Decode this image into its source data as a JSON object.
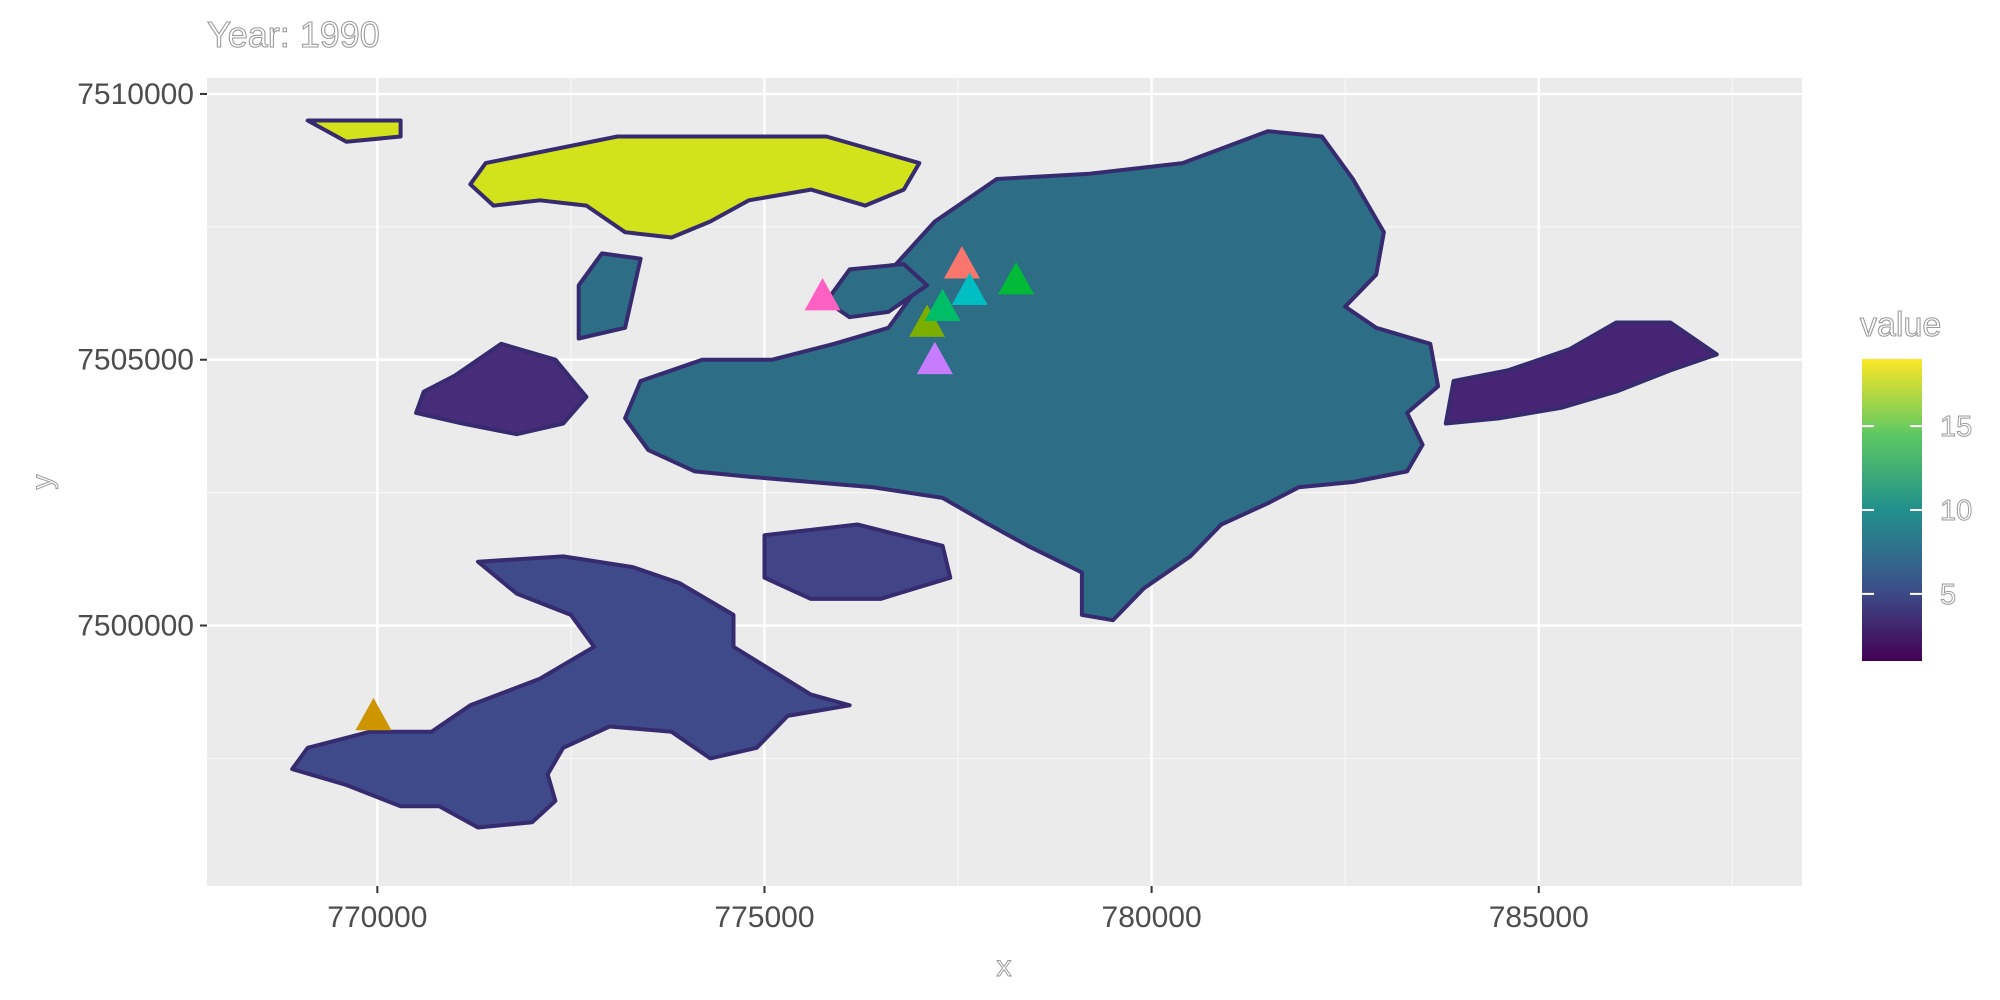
{
  "title": "Year: 1990",
  "chart_data": {
    "type": "map",
    "title": "Year: 1990",
    "xlabel": "x",
    "ylabel": "y",
    "xlim": [
      767800,
      788400
    ],
    "ylim": [
      7495100,
      7510300
    ],
    "x_ticks": [
      770000,
      775000,
      780000,
      785000
    ],
    "x_tick_labels": [
      "770000",
      "775000",
      "780000",
      "785000"
    ],
    "y_ticks": [
      7500000,
      7505000,
      7510000
    ],
    "y_tick_labels": [
      "7500000",
      "7505000",
      "7510000"
    ],
    "grid": true,
    "legend": {
      "title": "value",
      "position": "right",
      "range": [
        1,
        19
      ],
      "breaks": [
        5,
        10,
        15
      ],
      "break_labels": [
        "5",
        "10",
        "15"
      ],
      "palette": [
        "#440154",
        "#3b528b",
        "#21908c",
        "#5dc863",
        "#fde725"
      ]
    },
    "points": [
      {
        "x": 769950,
        "y": 7498300,
        "color": "#CD9600"
      },
      {
        "x": 775750,
        "y": 7506200,
        "color": "#FF61C3"
      },
      {
        "x": 777100,
        "y": 7505700,
        "color": "#7CAE00"
      },
      {
        "x": 777300,
        "y": 7506000,
        "color": "#00BE67"
      },
      {
        "x": 777200,
        "y": 7505000,
        "color": "#C77CFF"
      },
      {
        "x": 777550,
        "y": 7506800,
        "color": "#F8766D"
      },
      {
        "x": 777650,
        "y": 7506300,
        "color": "#00BFC4"
      },
      {
        "x": 778250,
        "y": 7506500,
        "color": "#00BA38"
      }
    ],
    "regions": [
      {
        "value": 8.5,
        "color": "#2d6d86",
        "points": [
          [
            776700,
            7506800
          ],
          [
            777200,
            7507600
          ],
          [
            778000,
            7508400
          ],
          [
            779200,
            7508500
          ],
          [
            780400,
            7508700
          ],
          [
            781500,
            7509300
          ],
          [
            782200,
            7509200
          ],
          [
            782600,
            7508400
          ],
          [
            783000,
            7507400
          ],
          [
            782900,
            7506600
          ],
          [
            782500,
            7506000
          ],
          [
            782900,
            7505600
          ],
          [
            783600,
            7505300
          ],
          [
            783700,
            7504500
          ],
          [
            783300,
            7504000
          ],
          [
            783500,
            7503400
          ],
          [
            783300,
            7502900
          ],
          [
            782600,
            7502700
          ],
          [
            781900,
            7502600
          ],
          [
            781500,
            7502300
          ],
          [
            780900,
            7501900
          ],
          [
            780500,
            7501300
          ],
          [
            779900,
            7500700
          ],
          [
            779500,
            7500100
          ],
          [
            779100,
            7500200
          ],
          [
            779100,
            7501000
          ],
          [
            778400,
            7501500
          ],
          [
            777900,
            7501900
          ],
          [
            777300,
            7502400
          ],
          [
            776400,
            7502600
          ],
          [
            775600,
            7502700
          ],
          [
            774800,
            7502800
          ],
          [
            774100,
            7502900
          ],
          [
            773500,
            7503300
          ],
          [
            773200,
            7503900
          ],
          [
            773400,
            7504600
          ],
          [
            774200,
            7505000
          ],
          [
            775100,
            7505000
          ],
          [
            775900,
            7505300
          ],
          [
            776600,
            7505600
          ],
          [
            776900,
            7506200
          ]
        ]
      },
      {
        "value": 8.5,
        "color": "#2d6d86",
        "points": [
          [
            775800,
            7506100
          ],
          [
            776100,
            7506700
          ],
          [
            776800,
            7506800
          ],
          [
            777100,
            7506400
          ],
          [
            776600,
            7505900
          ],
          [
            776100,
            7505800
          ]
        ]
      },
      {
        "value": 2.5,
        "color": "#482475",
        "points": [
          [
            783800,
            7503800
          ],
          [
            783900,
            7504600
          ],
          [
            784600,
            7504800
          ],
          [
            785400,
            7505200
          ],
          [
            786000,
            7505700
          ],
          [
            786700,
            7505700
          ],
          [
            787300,
            7505100
          ],
          [
            786700,
            7504800
          ],
          [
            786000,
            7504400
          ],
          [
            785300,
            7504100
          ],
          [
            784500,
            7503900
          ]
        ]
      },
      {
        "value": 5,
        "color": "#3e4a89",
        "points": [
          [
            771300,
            7501200
          ],
          [
            772400,
            7501300
          ],
          [
            773300,
            7501100
          ],
          [
            773900,
            7500800
          ],
          [
            774600,
            7500200
          ],
          [
            774600,
            7499600
          ],
          [
            775600,
            7498700
          ],
          [
            776100,
            7498500
          ],
          [
            775300,
            7498300
          ],
          [
            774900,
            7497700
          ],
          [
            774300,
            7497500
          ],
          [
            773800,
            7498000
          ],
          [
            773000,
            7498100
          ],
          [
            772400,
            7497700
          ],
          [
            772200,
            7497200
          ],
          [
            772300,
            7496700
          ],
          [
            772000,
            7496300
          ],
          [
            771300,
            7496200
          ],
          [
            770800,
            7496600
          ],
          [
            770300,
            7496600
          ],
          [
            769600,
            7497000
          ],
          [
            768900,
            7497300
          ],
          [
            769100,
            7497700
          ],
          [
            769900,
            7498000
          ],
          [
            770700,
            7498000
          ],
          [
            771200,
            7498500
          ],
          [
            772100,
            7499000
          ],
          [
            772800,
            7499600
          ],
          [
            772500,
            7500200
          ],
          [
            771800,
            7500600
          ]
        ]
      },
      {
        "value": 4.5,
        "color": "#414487",
        "points": [
          [
            775000,
            7501700
          ],
          [
            776200,
            7501900
          ],
          [
            777300,
            7501500
          ],
          [
            777400,
            7500900
          ],
          [
            776500,
            7500500
          ],
          [
            775600,
            7500500
          ],
          [
            775000,
            7500900
          ]
        ]
      },
      {
        "value": 3,
        "color": "#472c7a",
        "points": [
          [
            771000,
            7504700
          ],
          [
            771600,
            7505300
          ],
          [
            772300,
            7505000
          ],
          [
            772700,
            7504300
          ],
          [
            772400,
            7503800
          ],
          [
            771800,
            7503600
          ],
          [
            771100,
            7503800
          ],
          [
            770500,
            7504000
          ],
          [
            770600,
            7504400
          ]
        ]
      },
      {
        "value": 8.5,
        "color": "#2d6d86",
        "points": [
          [
            772600,
            7505400
          ],
          [
            773200,
            7505600
          ],
          [
            773400,
            7506900
          ],
          [
            772900,
            7507000
          ],
          [
            772600,
            7506400
          ]
        ]
      },
      {
        "value": 18,
        "color": "#d2e21b",
        "points": [
          [
            771400,
            7508700
          ],
          [
            773100,
            7509200
          ],
          [
            775800,
            7509200
          ],
          [
            777000,
            7508700
          ],
          [
            776800,
            7508200
          ],
          [
            776300,
            7507900
          ],
          [
            775600,
            7508200
          ],
          [
            774800,
            7508000
          ],
          [
            774300,
            7507600
          ],
          [
            773800,
            7507300
          ],
          [
            773200,
            7507400
          ],
          [
            772700,
            7507900
          ],
          [
            772100,
            7508000
          ],
          [
            771500,
            7507900
          ],
          [
            771200,
            7508300
          ]
        ]
      },
      {
        "value": 18,
        "color": "#d2e21b",
        "points": [
          [
            769100,
            7509500
          ],
          [
            770300,
            7509500
          ],
          [
            770300,
            7509200
          ],
          [
            769600,
            7509100
          ]
        ]
      }
    ]
  }
}
